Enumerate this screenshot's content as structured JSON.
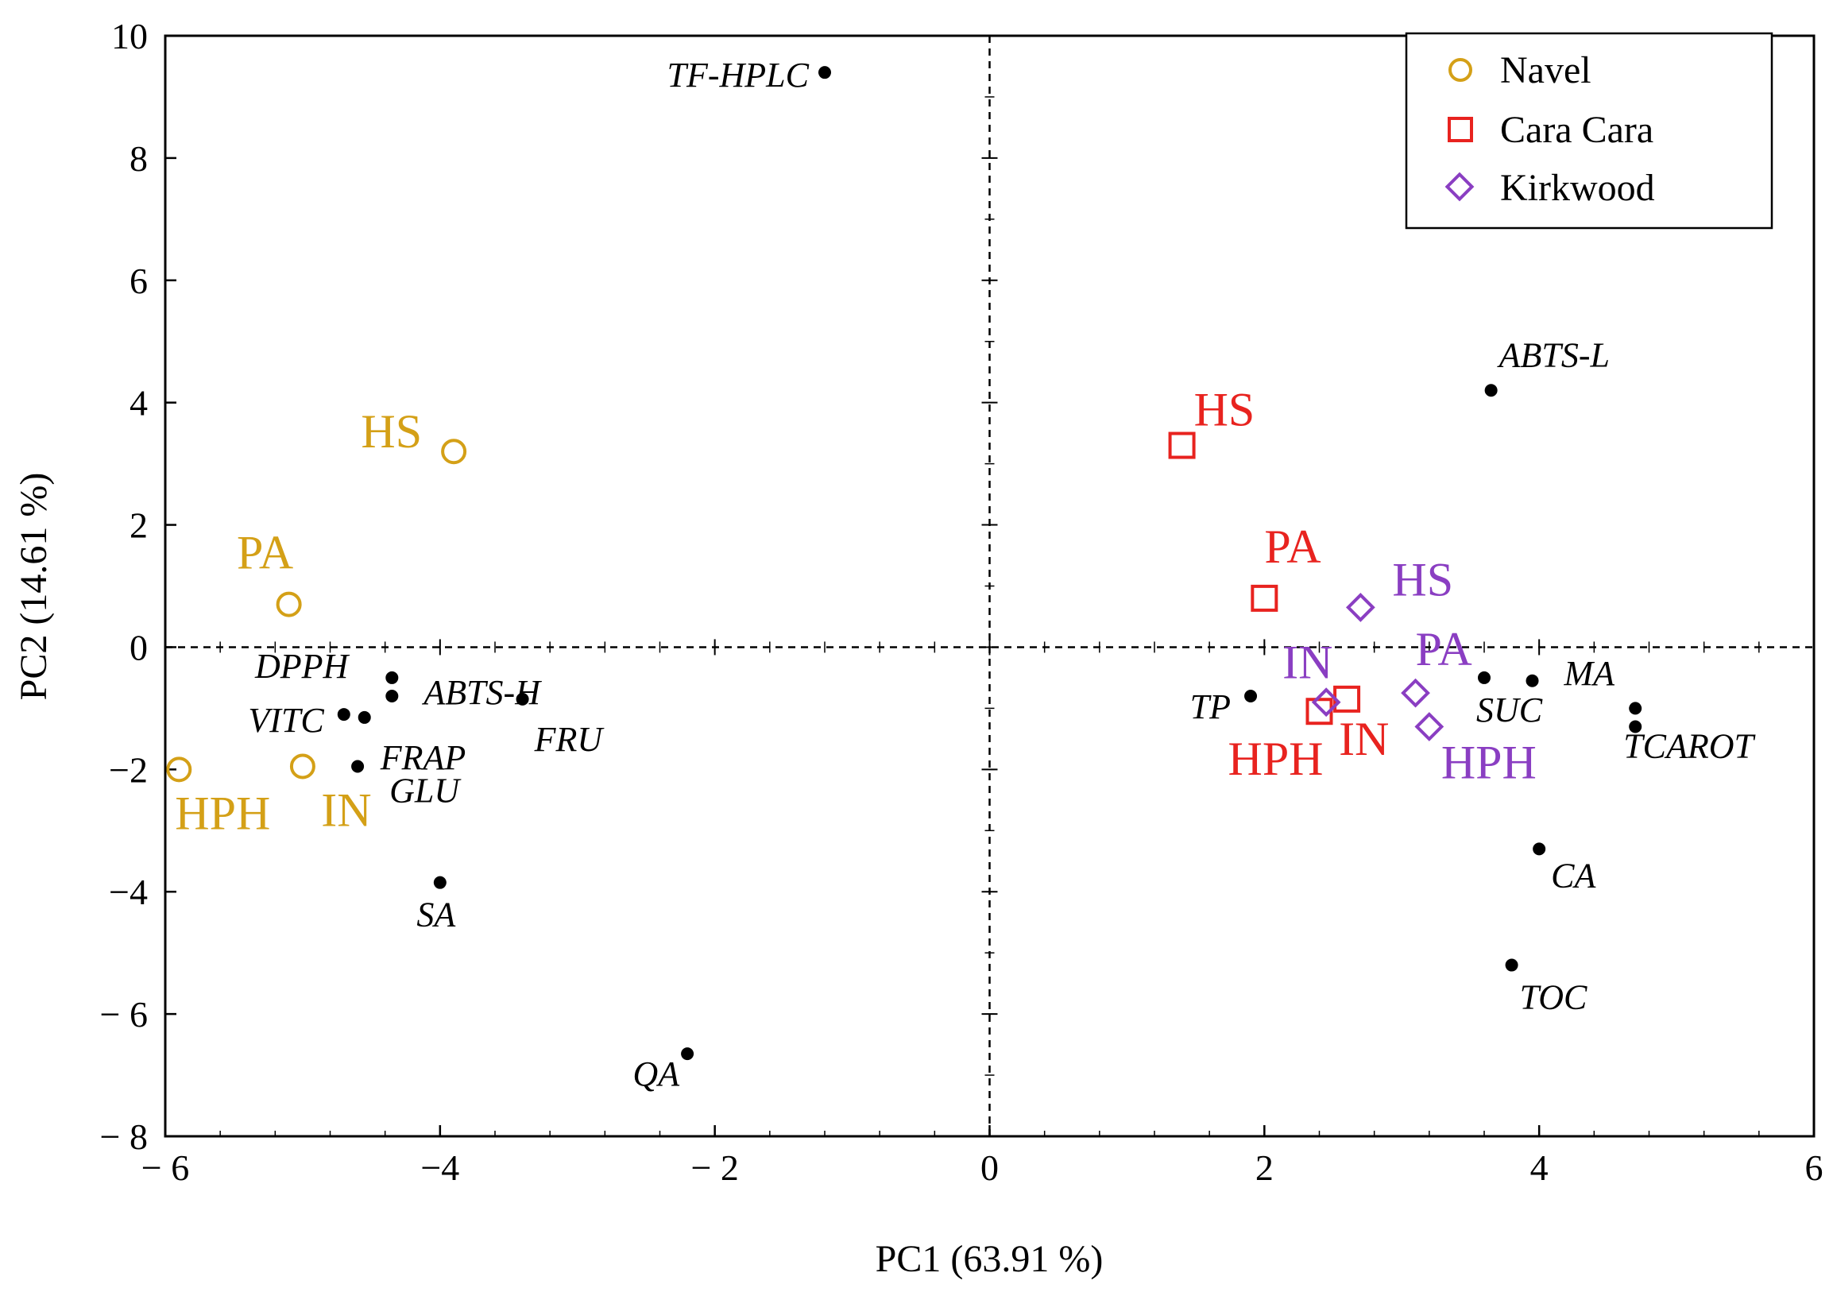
{
  "chart_data": {
    "type": "scatter",
    "title": "",
    "xlabel": "PC1 (63.91 %)",
    "ylabel": "PC2 (14.61 %)",
    "xlim": [
      -6,
      6
    ],
    "ylim": [
      -8,
      10
    ],
    "x_ticks": [
      -6,
      -4,
      -2,
      0,
      2,
      4,
      6
    ],
    "y_ticks": [
      -8,
      -6,
      -4,
      -2,
      0,
      2,
      4,
      6,
      8,
      10
    ],
    "x_tick_labels": [
      "− 6",
      "−4",
      "− 2",
      "0",
      "2",
      "4",
      "6"
    ],
    "y_tick_labels": [
      "− 8",
      "− 6",
      "−4",
      "−2",
      "0",
      "2",
      "4",
      "6",
      "8",
      "10"
    ],
    "legend_position": "top-right",
    "series": [
      {
        "name": "Navel",
        "marker": "circle",
        "color": "#D4A017",
        "points": [
          {
            "label": "HS",
            "x": -3.9,
            "y": 3.2
          },
          {
            "label": "PA",
            "x": -5.1,
            "y": 0.7
          },
          {
            "label": "HPH",
            "x": -5.9,
            "y": -2.0
          },
          {
            "label": "IN",
            "x": -5.0,
            "y": -1.95
          }
        ]
      },
      {
        "name": "Cara Cara",
        "marker": "square",
        "color": "#E8231F",
        "points": [
          {
            "label": "HS",
            "x": 1.4,
            "y": 3.3
          },
          {
            "label": "PA",
            "x": 2.0,
            "y": 0.8
          },
          {
            "label": "HPH",
            "x": 2.4,
            "y": -1.05
          },
          {
            "label": "IN",
            "x": 2.6,
            "y": -0.85
          }
        ]
      },
      {
        "name": "Kirkwood",
        "marker": "diamond",
        "color": "#8A3EC2",
        "points": [
          {
            "label": "HS",
            "x": 2.7,
            "y": 0.65
          },
          {
            "label": "PA",
            "x": 3.1,
            "y": -0.75
          },
          {
            "label": "HPH",
            "x": 3.2,
            "y": -1.3
          },
          {
            "label": "IN",
            "x": 2.45,
            "y": -0.9
          }
        ]
      }
    ],
    "variables": [
      {
        "name": "TF-HPLC",
        "x": -1.2,
        "y": 9.4
      },
      {
        "name": "ABTS-L",
        "x": 3.65,
        "y": 4.2
      },
      {
        "name": "DPPH",
        "x": -4.35,
        "y": -0.5
      },
      {
        "name": "ABTS-H",
        "x": -4.35,
        "y": -0.8
      },
      {
        "name": "FRU",
        "x": -3.4,
        "y": -0.85
      },
      {
        "name": "VITC",
        "x": -4.7,
        "y": -1.1
      },
      {
        "name": "FRAP",
        "x": -4.55,
        "y": -1.15
      },
      {
        "name": "GLU",
        "x": -4.6,
        "y": -1.95
      },
      {
        "name": "SA",
        "x": -4.0,
        "y": -3.85
      },
      {
        "name": "QA",
        "x": -2.2,
        "y": -6.65
      },
      {
        "name": "TP",
        "x": 1.9,
        "y": -0.8
      },
      {
        "name": "SUC",
        "x": 3.6,
        "y": -0.5
      },
      {
        "name": "MA",
        "x": 3.95,
        "y": -0.55
      },
      {
        "name": "TCAROT",
        "x": 4.7,
        "y": -1.0
      },
      {
        "name": "CA",
        "x": 4.0,
        "y": -3.3
      },
      {
        "name": "TOC",
        "x": 3.8,
        "y": -5.2
      }
    ],
    "extra_point": {
      "x": 4.7,
      "y": -1.3
    }
  }
}
